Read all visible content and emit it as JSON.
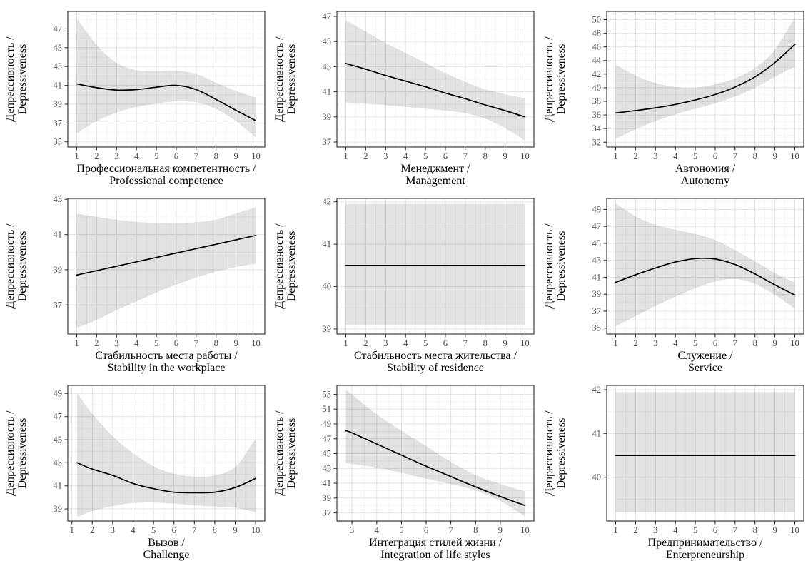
{
  "figure": {
    "description": "3x3 grid of GAM smooth plots: depressiveness vs career-anchor scores, with grey confidence bands",
    "style": {
      "panel_bg": "#ffffff",
      "grid_major": "#e3e3e3",
      "grid_minor": "#f0f0f0",
      "band": "rgba(0,0,0,0.115)",
      "line": "#000000",
      "border": "#3d3d3d",
      "tick": "#333333",
      "tick_label": "#4d4d4d",
      "title": "#000000"
    }
  },
  "chart_data": [
    {
      "type": "line",
      "xlabel_ru": "Профессиональная компетентность /",
      "xlabel_en": "Professional competence",
      "ylabel_line1": "Депрессивность /",
      "ylabel_line2": "Depressiveness",
      "x_ticks": [
        1,
        2,
        3,
        4,
        5,
        6,
        7,
        8,
        9,
        10
      ],
      "y_ticks": [
        35,
        37,
        39,
        41,
        43,
        45,
        47
      ],
      "xlim": [
        0.55,
        10.45
      ],
      "ylim": [
        34.45,
        48.85
      ],
      "line_x": [
        1,
        2,
        3,
        4,
        5,
        6,
        7,
        8,
        9,
        10
      ],
      "line_y": [
        41.15,
        40.75,
        40.5,
        40.55,
        40.8,
        41.0,
        40.55,
        39.5,
        38.35,
        37.25
      ],
      "band_x": [
        1,
        2,
        3,
        4,
        5,
        6,
        7,
        8,
        9,
        10
      ],
      "band_upper": [
        48.1,
        45.3,
        43.4,
        42.6,
        42.5,
        42.55,
        42.2,
        41.3,
        40.4,
        39.7
      ],
      "band_lower": [
        35.9,
        37.2,
        38.1,
        38.7,
        39.05,
        39.3,
        39.2,
        38.5,
        37.2,
        35.45
      ]
    },
    {
      "type": "line",
      "xlabel_ru": "Менеджмент /",
      "xlabel_en": "Management",
      "ylabel_line1": "Депрессивность /",
      "ylabel_line2": "Depressiveness",
      "x_ticks": [
        1,
        2,
        3,
        4,
        5,
        6,
        7,
        8,
        9,
        10
      ],
      "y_ticks": [
        37,
        39,
        41,
        43,
        45,
        47
      ],
      "xlim": [
        0.55,
        10.45
      ],
      "ylim": [
        36.6,
        47.4
      ],
      "line_x": [
        1,
        2,
        3,
        4,
        5,
        6,
        7,
        8,
        9,
        10
      ],
      "line_y": [
        43.25,
        42.8,
        42.3,
        41.85,
        41.4,
        40.9,
        40.45,
        39.95,
        39.5,
        39.0
      ],
      "band_x": [
        1,
        2,
        3,
        4,
        5,
        6,
        7,
        8,
        9,
        10
      ],
      "band_upper": [
        46.7,
        45.8,
        44.9,
        44.1,
        43.3,
        42.5,
        41.8,
        41.2,
        40.8,
        40.5
      ],
      "band_lower": [
        40.15,
        40.05,
        39.95,
        39.8,
        39.65,
        39.5,
        39.3,
        38.85,
        38.1,
        37.1
      ]
    },
    {
      "type": "line",
      "xlabel_ru": "Автономия /",
      "xlabel_en": "Autonomy",
      "ylabel_line1": "Депрессивность /",
      "ylabel_line2": "Depressiveness",
      "x_ticks": [
        1,
        2,
        3,
        4,
        5,
        6,
        7,
        8,
        9,
        10
      ],
      "y_ticks": [
        32,
        34,
        36,
        38,
        40,
        42,
        44,
        46,
        48,
        50
      ],
      "xlim": [
        0.55,
        10.45
      ],
      "ylim": [
        31.3,
        51.2
      ],
      "line_x": [
        1,
        2,
        3,
        4,
        5,
        6,
        7,
        8,
        9,
        10
      ],
      "line_y": [
        36.3,
        36.65,
        37.05,
        37.55,
        38.2,
        39.0,
        40.1,
        41.6,
        43.7,
        46.35
      ],
      "band_x": [
        1,
        2,
        3,
        4,
        5,
        6,
        7,
        8,
        9,
        10
      ],
      "band_upper": [
        43.4,
        41.8,
        40.7,
        40.1,
        40.0,
        40.5,
        41.4,
        42.9,
        45.6,
        50.4
      ],
      "band_lower": [
        32.5,
        33.9,
        35.1,
        36.1,
        36.9,
        37.7,
        38.7,
        40.0,
        41.6,
        43.1
      ]
    },
    {
      "type": "line",
      "xlabel_ru": "Стабильность места работы /",
      "xlabel_en": "Stability in the workplace",
      "ylabel_line1": "Депрессивность /",
      "ylabel_line2": "Depressiveness",
      "x_ticks": [
        1,
        2,
        3,
        4,
        5,
        6,
        7,
        8,
        9,
        10
      ],
      "y_ticks": [
        37,
        39,
        41,
        43
      ],
      "xlim": [
        0.55,
        10.45
      ],
      "ylim": [
        35.35,
        43.05
      ],
      "line_x": [
        1,
        2,
        3,
        4,
        5,
        6,
        7,
        8,
        9,
        10
      ],
      "line_y": [
        38.7,
        38.95,
        39.2,
        39.45,
        39.7,
        39.95,
        40.2,
        40.45,
        40.7,
        40.95
      ],
      "band_x": [
        1,
        2,
        3,
        4,
        5,
        6,
        7,
        8,
        9,
        10
      ],
      "band_upper": [
        42.2,
        42.0,
        41.85,
        41.72,
        41.66,
        41.64,
        41.7,
        41.85,
        42.2,
        42.55
      ],
      "band_lower": [
        35.7,
        36.15,
        36.7,
        37.2,
        37.7,
        38.15,
        38.55,
        38.9,
        39.15,
        39.35
      ]
    },
    {
      "type": "line",
      "xlabel_ru": "Стабильность места жительства /",
      "xlabel_en": "Stability of residence",
      "ylabel_line1": "Депрессивность /",
      "ylabel_line2": "Depressiveness",
      "x_ticks": [
        1,
        2,
        3,
        4,
        5,
        6,
        7,
        8,
        9,
        10
      ],
      "y_ticks": [
        39,
        40,
        41,
        42
      ],
      "xlim": [
        0.55,
        10.45
      ],
      "ylim": [
        38.88,
        42.08
      ],
      "line_x": [
        1,
        10
      ],
      "line_y": [
        40.5,
        40.5
      ],
      "band_x": [
        1,
        10
      ],
      "band_upper": [
        41.95,
        41.95
      ],
      "band_lower": [
        39.1,
        39.1
      ]
    },
    {
      "type": "line",
      "xlabel_ru": "Служение /",
      "xlabel_en": "Service",
      "ylabel_line1": "Депрессивность /",
      "ylabel_line2": "Depressiveness",
      "x_ticks": [
        1,
        2,
        3,
        4,
        5,
        6,
        7,
        8,
        9,
        10
      ],
      "y_ticks": [
        35,
        37,
        39,
        41,
        43,
        45,
        47,
        49
      ],
      "xlim": [
        0.55,
        10.45
      ],
      "ylim": [
        34.3,
        50.3
      ],
      "line_x": [
        1,
        2,
        3,
        4,
        5,
        6,
        7,
        8,
        9,
        10
      ],
      "line_y": [
        40.4,
        41.3,
        42.1,
        42.8,
        43.2,
        43.15,
        42.5,
        41.4,
        40.1,
        38.9
      ],
      "band_x": [
        1,
        2,
        3,
        4,
        5,
        6,
        7,
        8,
        9,
        10
      ],
      "band_upper": [
        49.7,
        48.2,
        47.2,
        46.6,
        46.1,
        45.4,
        44.2,
        42.9,
        41.5,
        40.4
      ],
      "band_lower": [
        35.2,
        36.4,
        37.6,
        38.7,
        39.7,
        40.5,
        40.8,
        40.2,
        38.9,
        37.3
      ]
    },
    {
      "type": "line",
      "xlabel_ru": "Вызов /",
      "xlabel_en": "Challenge",
      "ylabel_line1": "Депрессивность /",
      "ylabel_line2": "Depressiveness",
      "x_ticks": [
        1,
        2,
        3,
        4,
        5,
        6,
        7,
        8,
        9,
        10
      ],
      "y_ticks": [
        39,
        41,
        43,
        45,
        47,
        49
      ],
      "xlim": [
        0.8,
        10.45
      ],
      "ylim": [
        37.95,
        49.7
      ],
      "line_x": [
        1.25,
        2,
        3,
        4,
        5,
        6,
        7,
        8,
        9,
        10
      ],
      "line_y": [
        43.0,
        42.45,
        41.9,
        41.2,
        40.75,
        40.45,
        40.4,
        40.45,
        40.85,
        41.65
      ],
      "band_x": [
        1.25,
        2,
        3,
        4,
        5,
        6,
        7,
        8,
        9,
        10
      ],
      "band_upper": [
        49.05,
        47.25,
        45.3,
        43.85,
        42.7,
        42.05,
        41.8,
        41.9,
        42.65,
        45.1
      ],
      "band_lower": [
        38.3,
        38.8,
        39.25,
        39.5,
        39.55,
        39.45,
        39.3,
        39.2,
        39.1,
        38.7
      ]
    },
    {
      "type": "line",
      "xlabel_ru": "Интеграция стилей жизни /",
      "xlabel_en": "Integration of life styles",
      "ylabel_line1": "Депрессивность /",
      "ylabel_line2": "Depressiveness",
      "x_ticks": [
        3,
        4,
        5,
        6,
        7,
        8,
        9,
        10
      ],
      "y_ticks": [
        37,
        39,
        41,
        43,
        45,
        47,
        49,
        51,
        53
      ],
      "xlim": [
        2.39,
        10.36
      ],
      "ylim": [
        35.9,
        54.2
      ],
      "line_x": [
        2.75,
        3,
        4,
        5,
        6,
        7,
        8,
        9,
        10
      ],
      "line_y": [
        48.1,
        47.8,
        46.3,
        44.8,
        43.3,
        41.9,
        40.5,
        39.2,
        38.0
      ],
      "band_x": [
        2.75,
        3,
        4,
        5,
        6,
        7,
        8,
        9,
        10
      ],
      "band_upper": [
        53.6,
        53.0,
        50.3,
        48.1,
        46.0,
        43.9,
        42.1,
        40.9,
        39.9
      ],
      "band_lower": [
        43.7,
        43.6,
        43.1,
        42.4,
        41.6,
        40.9,
        40.0,
        38.6,
        36.5
      ]
    },
    {
      "type": "line",
      "xlabel_ru": "Предпринимательство /",
      "xlabel_en": "Enterpreneurship",
      "ylabel_line1": "Депрессивность /",
      "ylabel_line2": "Depressiveness",
      "x_ticks": [
        1,
        2,
        3,
        4,
        5,
        6,
        7,
        8,
        9,
        10
      ],
      "y_ticks": [
        40,
        41,
        42
      ],
      "xlim": [
        0.55,
        10.45
      ],
      "ylim": [
        39.0,
        42.1
      ],
      "line_x": [
        1,
        10
      ],
      "line_y": [
        40.5,
        40.5
      ],
      "band_x": [
        1,
        10
      ],
      "band_upper": [
        41.95,
        41.95
      ],
      "band_lower": [
        39.2,
        39.2
      ]
    }
  ]
}
